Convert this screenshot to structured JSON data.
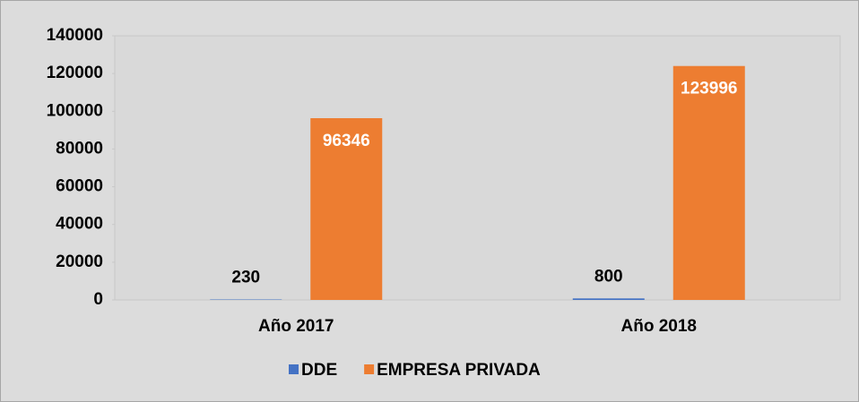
{
  "chart_data": {
    "type": "bar",
    "categories": [
      "Año 2017",
      "Año 2018"
    ],
    "series": [
      {
        "name": "DDE",
        "color": "#4472c4",
        "values": [
          230,
          800
        ]
      },
      {
        "name": "EMPRESA PRIVADA",
        "color": "#ed7d31",
        "values": [
          96346,
          123996
        ]
      }
    ],
    "ylim": [
      0,
      140000
    ],
    "yticks": [
      0,
      20000,
      40000,
      60000,
      80000,
      100000,
      120000,
      140000
    ],
    "legend": "bottom"
  }
}
